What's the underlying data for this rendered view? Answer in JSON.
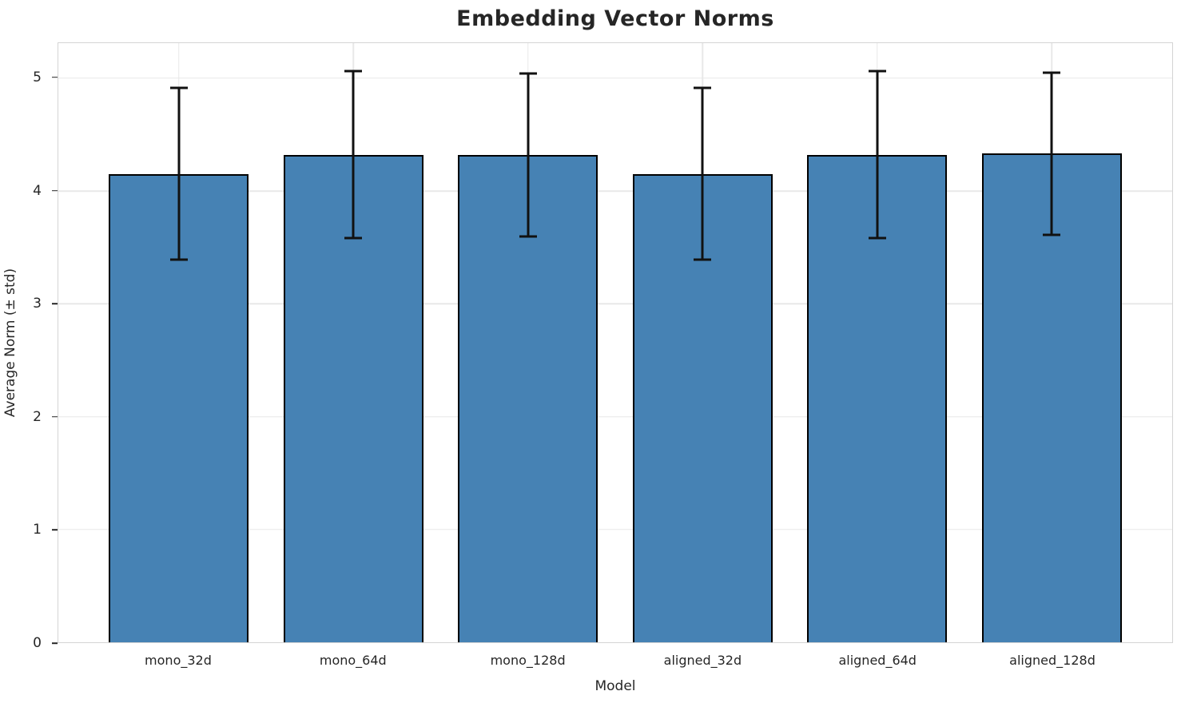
{
  "chart_data": {
    "type": "bar",
    "title": "Embedding Vector Norms",
    "xlabel": "Model",
    "ylabel": "Average Norm (± std)",
    "categories": [
      "mono_32d",
      "mono_64d",
      "mono_128d",
      "aligned_32d",
      "aligned_64d",
      "aligned_128d"
    ],
    "values": [
      4.15,
      4.32,
      4.32,
      4.15,
      4.32,
      4.33
    ],
    "errors": [
      0.76,
      0.74,
      0.72,
      0.76,
      0.74,
      0.72
    ],
    "yticks": [
      0,
      1,
      2,
      3,
      4,
      5
    ],
    "ylim": [
      0,
      5.31
    ],
    "xlim": [
      -0.69,
      5.69
    ],
    "bar_width_units": 0.8,
    "grid": true,
    "legend": "none",
    "colors": {
      "bar_fill": "#4682b4",
      "bar_edge": "#000000",
      "error_bar": "#111111",
      "grid_line": "#e8e8e8",
      "spine": "#d4d4d4",
      "text": "#262626",
      "background": "#ffffff"
    }
  }
}
